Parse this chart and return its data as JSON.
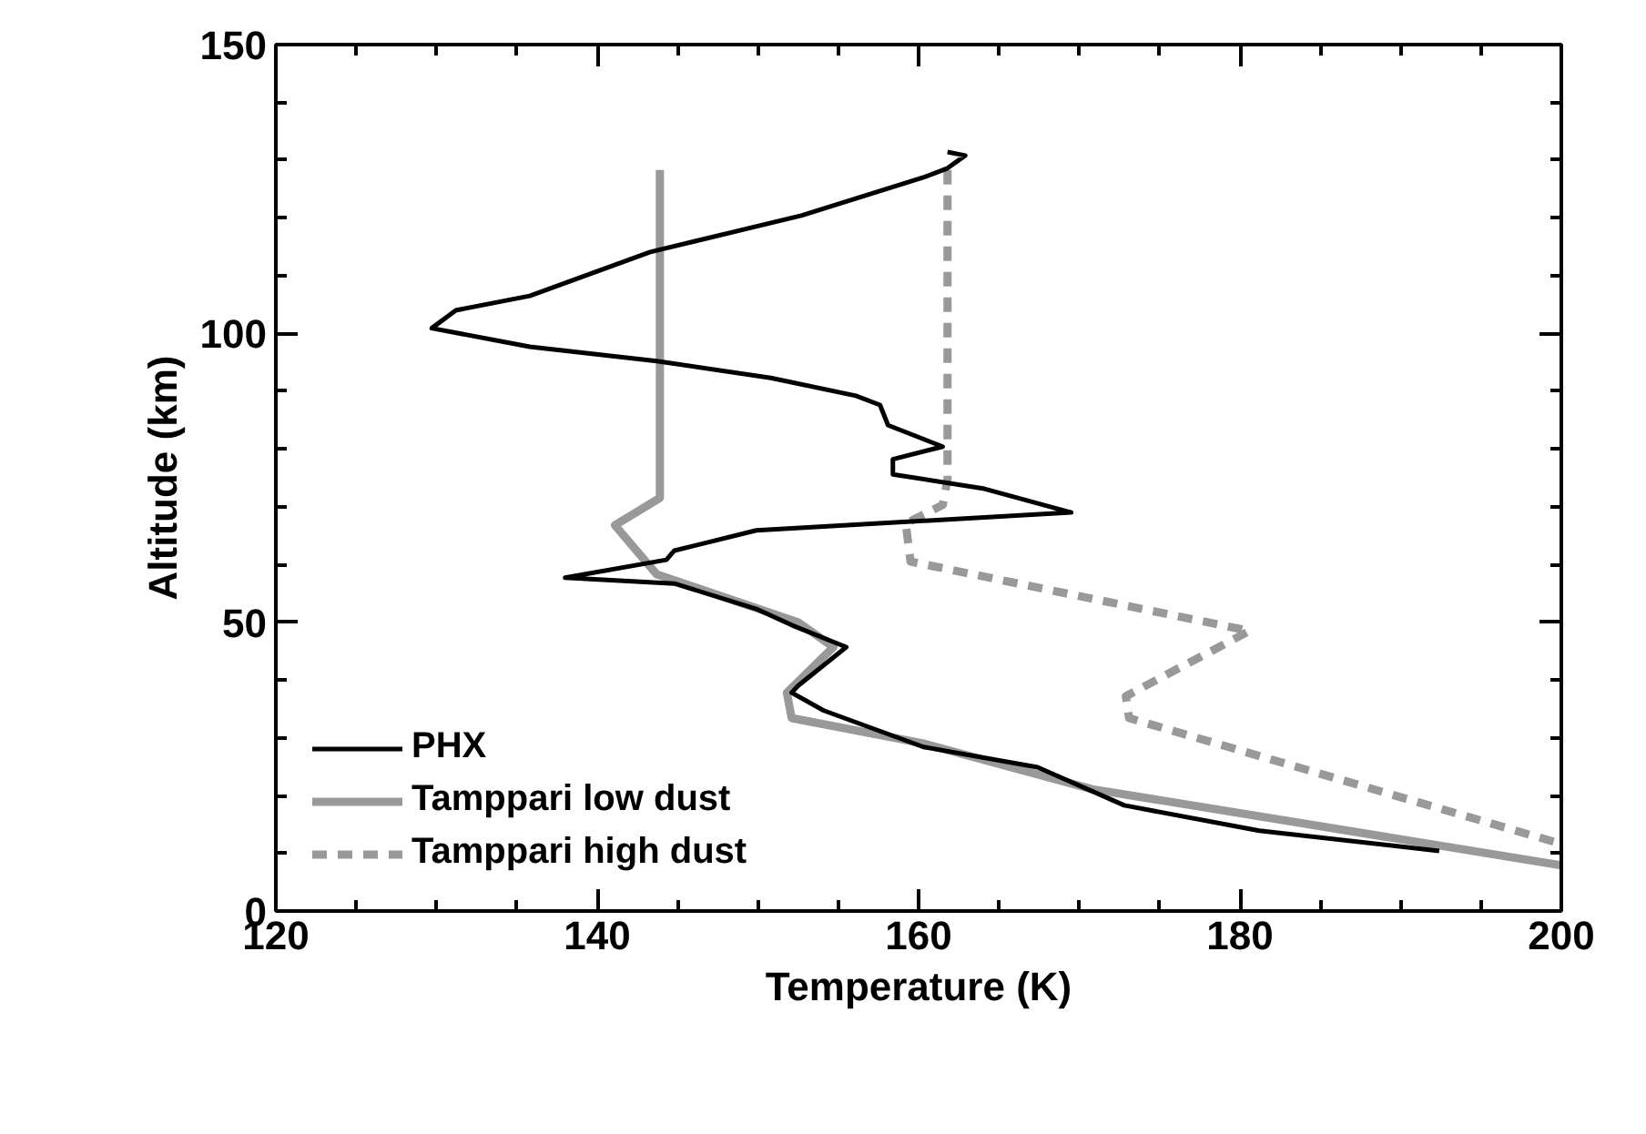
{
  "chart_data": {
    "type": "line",
    "xlabel": "Temperature (K)",
    "ylabel": "Altitude (km)",
    "xlim": [
      120,
      200
    ],
    "xticks": [
      120,
      140,
      160,
      180,
      200
    ],
    "ylim": [
      0,
      150
    ],
    "yticks": [
      0,
      50,
      100,
      150
    ],
    "grid": false,
    "legend": "bottom left",
    "marker": "none",
    "series": [
      {
        "name": "PHX",
        "color": "#000000",
        "line_style": "solid",
        "x": [
          192.4,
          181.2,
          172.8,
          167.4,
          160.3,
          154.1,
          152.1,
          152.5,
          155.5,
          152.1,
          149.9,
          144.8,
          138.0,
          144.3,
          144.8,
          149.9,
          169.5,
          164.1,
          158.4,
          158.4,
          161.5,
          158.1,
          157.6,
          156.1,
          150.8,
          143.7,
          135.8,
          129.7,
          131.2,
          135.8,
          143.3,
          152.7,
          160.3,
          161.8,
          162.9,
          161.8
        ],
        "values": [
          10.4,
          13.9,
          18.3,
          24.9,
          28.4,
          34.7,
          37.8,
          39.0,
          45.7,
          49.5,
          52.3,
          56.7,
          57.7,
          60.8,
          62.4,
          65.9,
          69.0,
          73.1,
          75.6,
          78.2,
          80.4,
          84.1,
          87.6,
          89.2,
          92.3,
          95.2,
          97.7,
          100.9,
          104.0,
          106.5,
          114.1,
          120.4,
          127.0,
          128.6,
          130.8,
          131.4
        ]
      },
      {
        "name": "Tamppari low dust",
        "color": "#999999",
        "line_style": "solid",
        "x": [
          143.9,
          143.9,
          141.1,
          143.7,
          152.5,
          154.7,
          151.8,
          152.1,
          160.3,
          170.8,
          200.0
        ],
        "values": [
          128.3,
          71.5,
          66.8,
          58.3,
          50.0,
          45.7,
          37.8,
          33.4,
          29.0,
          21.1,
          7.9
        ]
      },
      {
        "name": "Tamppari high dust",
        "color": "#999999",
        "line_style": "dashed",
        "x": [
          161.8,
          161.8,
          161.5,
          159.2,
          159.5,
          180.6,
          172.9,
          173.1,
          199.9
        ],
        "values": [
          128.3,
          74.7,
          70.3,
          67.1,
          60.5,
          48.5,
          37.2,
          33.4,
          11.7
        ]
      }
    ]
  }
}
